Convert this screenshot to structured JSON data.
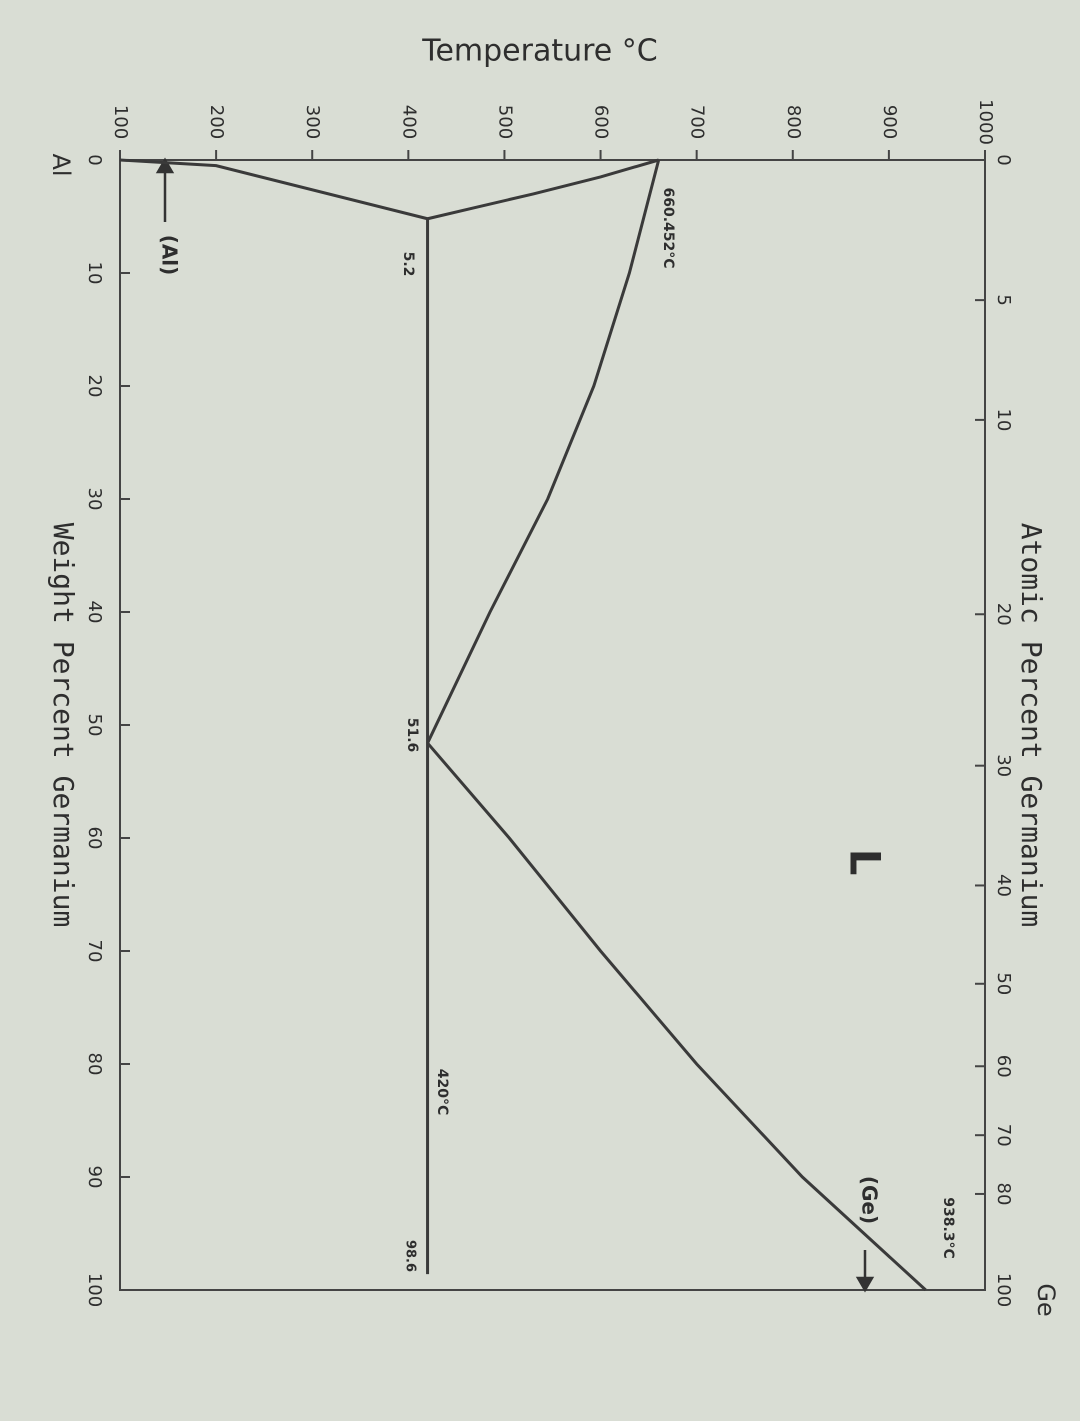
{
  "chart_data": {
    "type": "line",
    "y_label": "Temperature °C",
    "x_label": "Weight Percent Germanium",
    "x2_label": "Atomic Percent Germanium",
    "end_labels": [
      "Al",
      "Ge"
    ],
    "xlim": [
      0,
      100
    ],
    "xticks": [
      0,
      10,
      20,
      30,
      40,
      50,
      60,
      70,
      80,
      90,
      100
    ],
    "x2ticks": [
      0,
      {
        "value": 12.4,
        "label": "5"
      },
      {
        "value": 23.0,
        "label": "10"
      },
      {
        "value": 40.2,
        "label": "20"
      },
      {
        "value": 53.6,
        "label": "30"
      },
      {
        "value": 64.2,
        "label": "40"
      },
      {
        "value": 72.9,
        "label": "50"
      },
      {
        "value": 80.2,
        "label": "60"
      },
      {
        "value": 86.3,
        "label": "70"
      },
      {
        "value": 91.5,
        "label": "80"
      },
      100
    ],
    "ylim": [
      100,
      1000
    ],
    "yticks": [
      100,
      200,
      300,
      400,
      500,
      600,
      700,
      800,
      900,
      1000
    ],
    "series": [
      {
        "color": "#3a3a3a",
        "x": [
          0,
          10,
          20,
          30,
          40,
          51.6
        ],
        "values": [
          660.452,
          630,
          593,
          545,
          485,
          420
        ]
      },
      {
        "color": "#3a3a3a",
        "x": [
          51.6,
          60,
          70,
          80,
          90,
          100
        ],
        "values": [
          420,
          505,
          600,
          700,
          810,
          938.3
        ]
      },
      {
        "color": "#3a3a3a",
        "x": [
          0,
          1.5,
          3,
          4.2,
          5.2
        ],
        "values": [
          660.452,
          600,
          530,
          470,
          420
        ]
      },
      {
        "color": "#3a3a3a",
        "x": [
          5.2,
          0.5,
          0
        ],
        "values": [
          420,
          200,
          100
        ]
      },
      {
        "color": "#3a3a3a",
        "x": [
          5.2,
          98.6
        ],
        "values": [
          420,
          420
        ]
      }
    ],
    "annotations": [
      "660.452°C",
      "5.2",
      "51.6",
      "420°C",
      "98.6",
      "938.3°C",
      "L",
      "(Al)",
      "(Ge)"
    ]
  }
}
